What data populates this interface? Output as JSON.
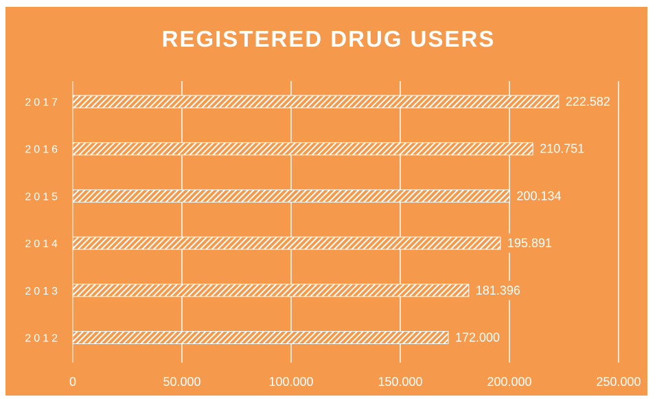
{
  "colors": {
    "background": "#f59a4c",
    "foreground": "#ffffff"
  },
  "chart_data": {
    "type": "bar",
    "orientation": "horizontal",
    "title": "REGISTERED DRUG USERS",
    "categories": [
      "2012",
      "2013",
      "2014",
      "2015",
      "2016",
      "2017"
    ],
    "values": [
      172000,
      181396,
      195891,
      200134,
      210751,
      222582
    ],
    "value_labels": [
      "172.000",
      "181.396",
      "195.891",
      "200.134",
      "210.751",
      "222.582"
    ],
    "xlim": [
      0,
      250000
    ],
    "x_ticks": [
      0,
      50000,
      100000,
      150000,
      200000,
      250000
    ],
    "x_tick_labels": [
      "0",
      "50.000",
      "100.000",
      "150.000",
      "200.000",
      "250.000"
    ],
    "bar_fill": "white diagonal hatch",
    "grid": true
  }
}
